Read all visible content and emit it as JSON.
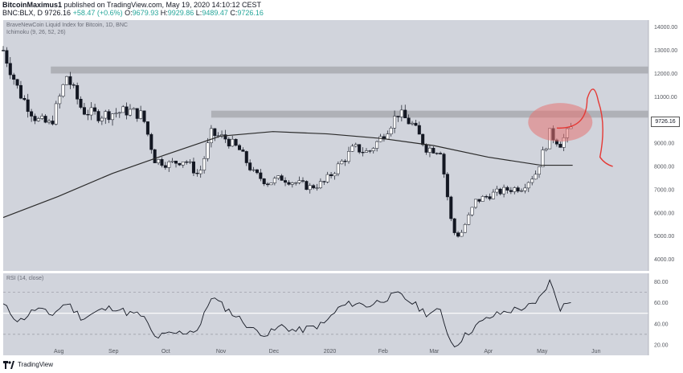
{
  "header": {
    "author": "BitcoinMaximus1",
    "published_text": "published on TradingView.com, May 19, 2020 14:10:12 CEST",
    "symbol": "BNC:BLX, D",
    "last": "9726.16",
    "change": "+58.47 (+0.6%)",
    "open_label": "O:",
    "open": "9679.93",
    "high_label": "H:",
    "high": "9929.86",
    "low_label": "L:",
    "low": "9489.47",
    "close_label": "C:",
    "close": "9726.16"
  },
  "price_pane": {
    "title": "BraveNewCoin Liquid Index for Bitcoin, 1D, BNC",
    "indicator": "Ichimoku (9, 26, 52, 26)",
    "current_price_tag": "9726.16"
  },
  "rsi_pane": {
    "title": "RSI (14, close)"
  },
  "footer": {
    "brand": "TradingView"
  },
  "colors": {
    "background": "#d1d4dc",
    "candle": "#131722",
    "ma_line": "#2b2b2b",
    "resistance_zone": "#a9aab0",
    "highlight_ellipse": "#e57373",
    "annotation_red": "#e53935"
  },
  "chart_data": [
    {
      "type": "candlestick",
      "title": "BraveNewCoin Liquid Index for Bitcoin, 1D, BNC",
      "x_tick_labels": [
        "Aug",
        "Sep",
        "Oct",
        "Nov",
        "Dec",
        "2020",
        "Feb",
        "Mar",
        "Apr",
        "May",
        "Jun"
      ],
      "y_tick_labels": [
        "4000.00",
        "5000.00",
        "6000.00",
        "7000.00",
        "8000.00",
        "9000.00",
        "10000.00",
        "11000.00",
        "12000.00",
        "13000.00",
        "14000.00"
      ],
      "ylim": [
        3500,
        14300
      ],
      "grid": false,
      "series": [
        {
          "name": "price",
          "x": [
            "Jul 1",
            "Jul 10",
            "Jul 20",
            "Jul 28",
            "Aug 6",
            "Aug 15",
            "Aug 24",
            "Sep 2",
            "Sep 10",
            "Sep 18",
            "Sep 25",
            "Oct 3",
            "Oct 12",
            "Oct 20",
            "Oct 27",
            "Nov 4",
            "Nov 12",
            "Nov 20",
            "Nov 28",
            "Dec 6",
            "Dec 14",
            "Dec 22",
            "Dec 30",
            "Jan 8",
            "Jan 16",
            "Jan 24",
            "Feb 1",
            "Feb 10",
            "Feb 18",
            "Feb 26",
            "Mar 5",
            "Mar 12",
            "Mar 16",
            "Mar 25",
            "Apr 3",
            "Apr 12",
            "Apr 20",
            "Apr 28",
            "May 6",
            "May 12",
            "May 19"
          ],
          "values": [
            13000,
            11200,
            10000,
            9800,
            11900,
            10400,
            10200,
            10300,
            10400,
            10200,
            8300,
            8100,
            8300,
            7600,
            9400,
            9200,
            8700,
            7700,
            7300,
            7500,
            7300,
            7100,
            7300,
            8100,
            8800,
            8600,
            9300,
            10300,
            9800,
            8800,
            8700,
            5200,
            5000,
            6500,
            6800,
            7000,
            7100,
            7700,
            9400,
            9000,
            9726
          ]
        },
        {
          "name": "moving average",
          "x": [
            "Jul 1",
            "Aug 1",
            "Sep 1",
            "Oct 1",
            "Nov 1",
            "Dec 1",
            "Jan 1",
            "Feb 1",
            "Mar 1",
            "Apr 1",
            "May 1",
            "May 19"
          ],
          "values": [
            5800,
            6700,
            7700,
            8500,
            9300,
            9500,
            9400,
            9200,
            8900,
            8400,
            8050,
            8050
          ]
        }
      ],
      "zones": [
        {
          "from": 12000,
          "to": 12300
        },
        {
          "from": 10100,
          "to": 10400
        }
      ]
    },
    {
      "type": "line",
      "title": "RSI (14, close)",
      "y_tick_labels": [
        "20.00",
        "40.00",
        "60.00",
        "80.00"
      ],
      "ylim": [
        10,
        88
      ],
      "reference_lines": [
        70,
        50,
        30
      ],
      "series": [
        {
          "name": "RSI",
          "x": [
            "Jul 1",
            "Jul 10",
            "Jul 20",
            "Jul 28",
            "Aug 6",
            "Aug 15",
            "Aug 24",
            "Sep 2",
            "Sep 10",
            "Sep 18",
            "Sep 25",
            "Oct 3",
            "Oct 12",
            "Oct 20",
            "Oct 27",
            "Nov 4",
            "Nov 12",
            "Nov 20",
            "Nov 28",
            "Dec 6",
            "Dec 14",
            "Dec 22",
            "Dec 30",
            "Jan 8",
            "Jan 16",
            "Jan 24",
            "Feb 1",
            "Feb 10",
            "Feb 18",
            "Feb 26",
            "Mar 5",
            "Mar 12",
            "Mar 16",
            "Mar 25",
            "Apr 3",
            "Apr 12",
            "Apr 20",
            "Apr 28",
            "May 6",
            "May 12",
            "May 19"
          ],
          "values": [
            58,
            42,
            55,
            48,
            60,
            45,
            52,
            56,
            50,
            48,
            27,
            30,
            32,
            35,
            66,
            55,
            45,
            34,
            30,
            38,
            33,
            36,
            40,
            56,
            60,
            57,
            63,
            68,
            60,
            50,
            52,
            18,
            24,
            38,
            47,
            52,
            55,
            58,
            80,
            55,
            63
          ]
        }
      ]
    }
  ]
}
